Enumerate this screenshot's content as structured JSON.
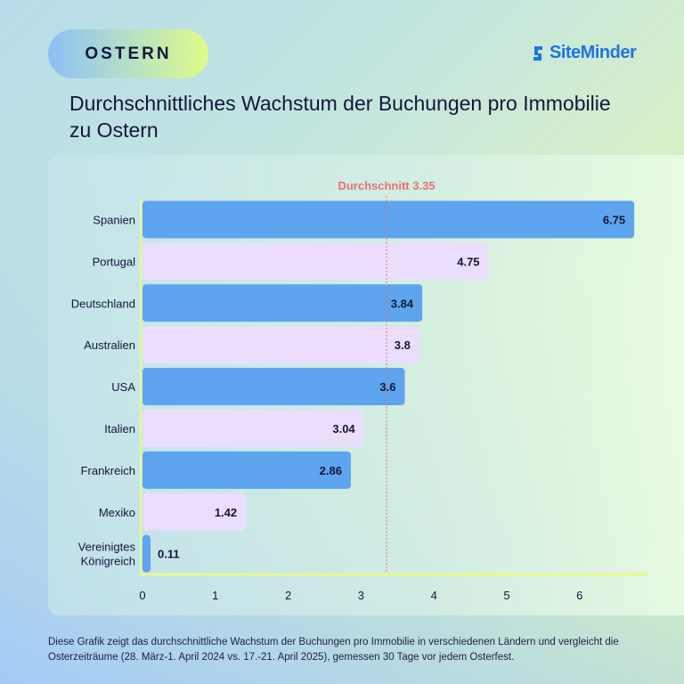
{
  "badge": "OSTERN",
  "logo": {
    "text": "SiteMinder",
    "color": "#1f74e0"
  },
  "title": "Durchschnittliches Wachstum der Buchungen pro Immobilie zu Ostern",
  "footnote": "Diese Grafik zeigt das durchschnittliche Wachstum der Buchungen pro Immobilie in verschiedenen Ländern und vergleicht die Osterzeiträume (28. März-1. April 2024 vs. 17.-21. April 2025), gemessen 30 Tage vor jedem Osterfest.",
  "chart_data": {
    "type": "bar",
    "orientation": "horizontal",
    "categories": [
      "Spanien",
      "Portugal",
      "Deutschland",
      "Australien",
      "USA",
      "Italien",
      "Frankreich",
      "Mexiko",
      "Vereinigtes Königreich"
    ],
    "values": [
      6.75,
      4.75,
      3.84,
      3.8,
      3.6,
      3.04,
      2.86,
      1.42,
      0.11
    ],
    "value_labels": [
      "6.75",
      "4.75",
      "3.84",
      "3.8",
      "3.6",
      "3.04",
      "2.86",
      "1.42",
      "0.11"
    ],
    "bar_colors": [
      "#5ea4ee",
      "#ebdefd"
    ],
    "xlim": [
      0,
      7
    ],
    "xticks": [
      "0",
      "1",
      "2",
      "3",
      "4",
      "5",
      "6"
    ],
    "reference_line": {
      "label": "Durchschnitt 3.35",
      "value": 3.35,
      "color": "#e8707a"
    },
    "grid": false,
    "title": "",
    "xlabel": "",
    "ylabel": ""
  }
}
